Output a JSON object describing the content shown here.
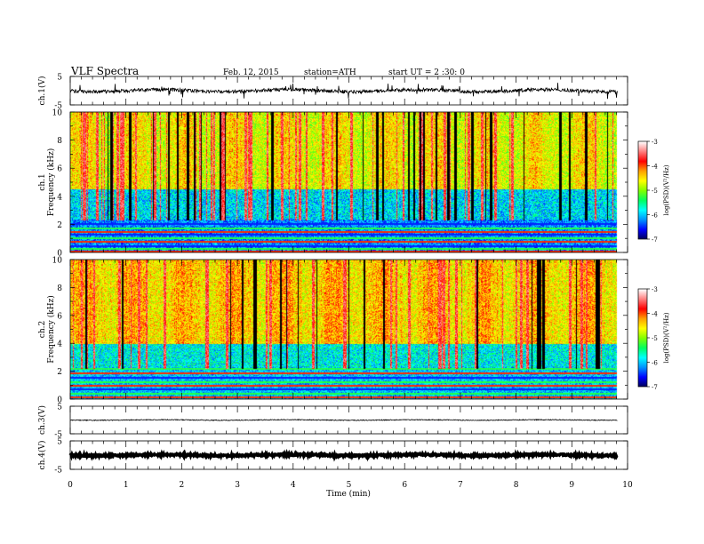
{
  "header": {
    "title": "VLF  Spectra",
    "date": "Feb. 12, 2015",
    "station": "station=ATH",
    "start": "start  UT  =   2  :30: 0"
  },
  "chart_data": [
    {
      "id": "ch1-waveform",
      "type": "line",
      "ylabel": "ch.1(V)",
      "ylim": [
        -5,
        5
      ],
      "yticks": [
        "5",
        "-5"
      ],
      "xlim": [
        0,
        10
      ],
      "signal_extent_min": [
        0,
        9.82
      ],
      "baseline_V": 0,
      "noise_amplitude_V": 1.2,
      "spike_amplitude_V": 2.5
    },
    {
      "id": "ch1-spectrogram",
      "type": "heatmap",
      "title": "ch.1",
      "ylabel": "Frequency (kHz)",
      "ylim": [
        0,
        10
      ],
      "yticks": [
        "0",
        "2",
        "4",
        "6",
        "8",
        "10"
      ],
      "colorbar": {
        "label": "log(PSD)(V²/Hz)",
        "range": [
          -7,
          -3
        ],
        "ticks": [
          "-3",
          "-4",
          "-5",
          "-6",
          "-7"
        ],
        "colors": [
          "#000050",
          "#0000ff",
          "#0090ff",
          "#00ffff",
          "#00ff60",
          "#80ff00",
          "#ffff00",
          "#ffa000",
          "#ff0000",
          "#ff8080",
          "#ffffff"
        ]
      },
      "features": {
        "high_band_logpsd_range": [
          -5.2,
          -3.8
        ],
        "mid_band_kHz": [
          2.4,
          4.5
        ],
        "mid_band_logpsd": -5.9,
        "low_band_kHz": [
          0,
          2.3
        ],
        "low_band_logpsd": -6.2,
        "sferic_count": 90,
        "line_emissions_kHz": [
          0.1,
          0.3,
          0.5,
          0.8,
          1.05,
          1.3,
          1.55,
          1.8,
          2.1
        ]
      }
    },
    {
      "id": "ch2-spectrogram",
      "type": "heatmap",
      "title": "ch.2",
      "ylabel": "Frequency (kHz)",
      "ylim": [
        0,
        10
      ],
      "yticks": [
        "0",
        "2",
        "4",
        "6",
        "8",
        "10"
      ],
      "colorbar": {
        "label": "log(PSD)(V²/Hz)",
        "range": [
          -7,
          -3
        ],
        "ticks": [
          "-3",
          "-4",
          "-5",
          "-6",
          "-7"
        ]
      },
      "features": {
        "high_band_logpsd_range": [
          -5.0,
          -3.6
        ],
        "mid_band_kHz": [
          2.3,
          4.0
        ],
        "mid_band_logpsd": -5.8,
        "low_band_kHz": [
          0,
          2.2
        ],
        "low_band_logpsd": -6.0,
        "sferic_count": 60,
        "line_emissions_kHz": [
          0.2,
          0.45,
          0.75,
          1.0,
          1.3,
          1.6,
          1.9,
          2.2
        ]
      }
    },
    {
      "id": "ch3-waveform",
      "type": "line",
      "ylabel": "ch.3(V)",
      "ylim": [
        -5,
        5
      ],
      "yticks": [
        "5",
        "-5"
      ],
      "xlim": [
        0,
        10
      ],
      "signal_extent_min": [
        0,
        9.82
      ],
      "baseline_V": 0,
      "noise_amplitude_V": 0.3
    },
    {
      "id": "ch4-waveform",
      "type": "line",
      "ylabel": "ch.4(V)",
      "ylim": [
        -5,
        5
      ],
      "yticks": [
        "5",
        "-5"
      ],
      "xlim": [
        0,
        10
      ],
      "signal_extent_min": [
        0,
        9.82
      ],
      "baseline_V": 0,
      "noise_amplitude_V": 0.6
    }
  ],
  "xaxis": {
    "label": "Time  (min)",
    "range": [
      0,
      10
    ],
    "ticks": [
      "0",
      "1",
      "2",
      "3",
      "4",
      "5",
      "6",
      "7",
      "8",
      "9",
      "10"
    ]
  }
}
